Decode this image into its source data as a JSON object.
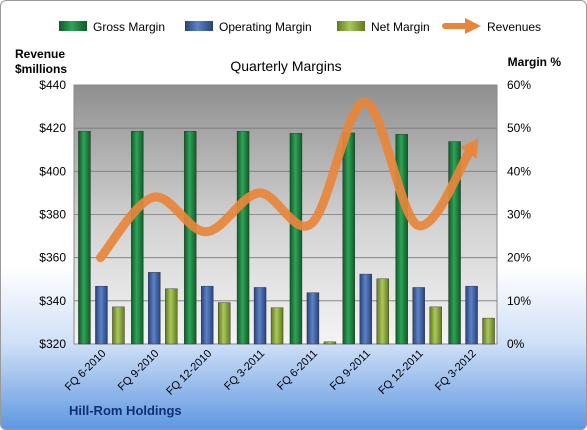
{
  "company": "Hill-Rom Holdings",
  "chart_data": {
    "type": "bar",
    "title": "Quarterly Margins",
    "ylabel_left": [
      "Revenue",
      "$millions"
    ],
    "ylabel_right": "Margin %",
    "categories": [
      "FQ 6-2010",
      "FQ 9-2010",
      "FQ 12-2010",
      "FQ 3-2011",
      "FQ 6-2011",
      "FQ 9-2011",
      "FQ 12-2011",
      "FQ 3-2012"
    ],
    "y_left_ticks": [
      "$320",
      "$340",
      "$360",
      "$380",
      "$400",
      "$420",
      "$440"
    ],
    "y_left_range": [
      320,
      440
    ],
    "y_right_ticks": [
      "0%",
      "10%",
      "20%",
      "30%",
      "40%",
      "50%",
      "60%"
    ],
    "y_right_range": [
      0,
      60
    ],
    "grid": true,
    "legend_position": "top",
    "series": [
      {
        "name": "Gross Margin",
        "type": "bar",
        "axis": "right",
        "color": "#1e7d3e",
        "values": [
          49.3,
          49.3,
          49.3,
          49.3,
          48.8,
          48.9,
          48.6,
          46.9
        ]
      },
      {
        "name": "Operating Margin",
        "type": "bar",
        "axis": "right",
        "color": "#3f63a8",
        "values": [
          13.4,
          16.6,
          13.4,
          13.1,
          11.9,
          16.2,
          13.1,
          13.4
        ]
      },
      {
        "name": "Net Margin",
        "type": "bar",
        "axis": "right",
        "color": "#8fae3c",
        "values": [
          8.6,
          12.8,
          9.6,
          8.4,
          0.5,
          15.1,
          8.6,
          6.0
        ]
      },
      {
        "name": "Revenues",
        "type": "line",
        "axis": "left",
        "color": "#e8853a",
        "values": [
          360,
          388,
          372,
          390,
          376,
          432,
          375,
          410
        ]
      }
    ]
  }
}
